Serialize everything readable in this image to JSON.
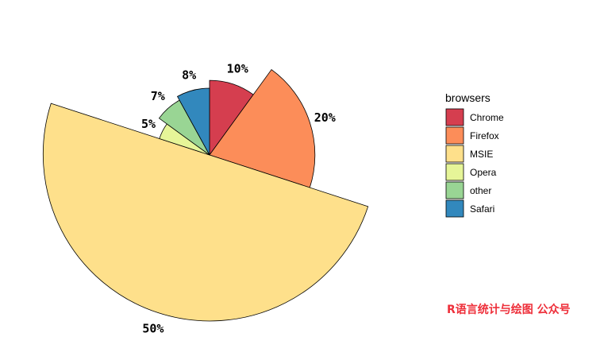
{
  "chart_data": {
    "type": "pie",
    "subtype": "rose (variable radius)",
    "categories": [
      "Chrome",
      "Firefox",
      "MSIE",
      "Opera",
      "other",
      "Safari"
    ],
    "values": [
      10,
      20,
      50,
      5,
      7,
      8
    ],
    "labels": [
      "10%",
      "20%",
      "50%",
      "5%",
      "7%",
      "8%"
    ],
    "colors": [
      "#d53e4f",
      "#fc8d59",
      "#fee08b",
      "#e6f598",
      "#99d594",
      "#3288bd"
    ],
    "legend": {
      "title": "browsers",
      "position": "right"
    },
    "outline": "#000000"
  },
  "watermark": "R语言统计与绘图 公众号"
}
